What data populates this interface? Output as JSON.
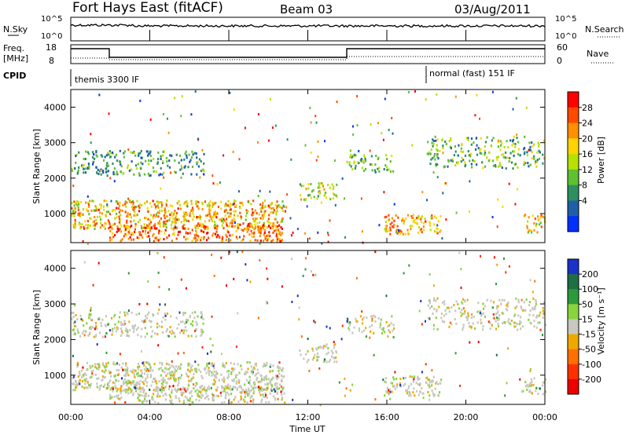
{
  "header": {
    "title": "Fort Hays East (fitACF)",
    "beam": "Beam 03",
    "date": "03/Aug/2011"
  },
  "status_panels": {
    "nsky_label": "N.Sky",
    "nsky_ticks": [
      "10^5",
      "10^0"
    ],
    "nsearch_label": "N.Search",
    "freq_label": "Freq.",
    "freq_unit": "[MHz]",
    "freq_ticks": [
      "18",
      "8"
    ],
    "nave_label": "Nave",
    "nave_ticks": [
      "60",
      "0"
    ],
    "cpid_label": "CPID",
    "cpid_modes": [
      "themis 3300 IF",
      "normal (fast) 151 IF"
    ]
  },
  "colorbars": {
    "power": {
      "label": "Power [dB]",
      "ticks": [
        "28",
        "24",
        "20",
        "16",
        "12",
        "8",
        "4"
      ],
      "colors": [
        "#ff0000",
        "#ff4a00",
        "#ff9000",
        "#ffd400",
        "#b8e000",
        "#5fc030",
        "#2f8f5f",
        "#1f5fa8",
        "#0030ff"
      ]
    },
    "velocity": {
      "label": "Velocity [m s⁻¹]",
      "ticks": [
        "200",
        "100",
        "50",
        "15",
        "-15",
        "-50",
        "-100",
        "-200"
      ],
      "colors": [
        "#1a32c8",
        "#1e6e46",
        "#2d9a3c",
        "#8ad43e",
        "#c8c8c0",
        "#f0a800",
        "#ff7000",
        "#ff3000",
        "#ee0000"
      ]
    }
  },
  "chart_data": [
    {
      "type": "heatmap",
      "name": "power",
      "ylabel": "Slant Range [km]",
      "xlabel": "Time UT",
      "ylim": [
        180,
        4500
      ],
      "x_ticks": [
        "00:00",
        "04:00",
        "08:00",
        "12:00",
        "16:00",
        "20:00",
        "00:00"
      ],
      "y_ticks": [
        1000,
        2000,
        3000,
        4000
      ],
      "zunit": "dB"
    },
    {
      "type": "heatmap",
      "name": "velocity",
      "ylabel": "Slant Range [km]",
      "xlabel": "Time UT",
      "ylim": [
        180,
        4500
      ],
      "x_ticks": [
        "00:00",
        "04:00",
        "08:00",
        "12:00",
        "16:00",
        "20:00",
        "00:00"
      ],
      "y_ticks": [
        1000,
        2000,
        3000,
        4000
      ],
      "zunit": "m s^-1"
    }
  ]
}
